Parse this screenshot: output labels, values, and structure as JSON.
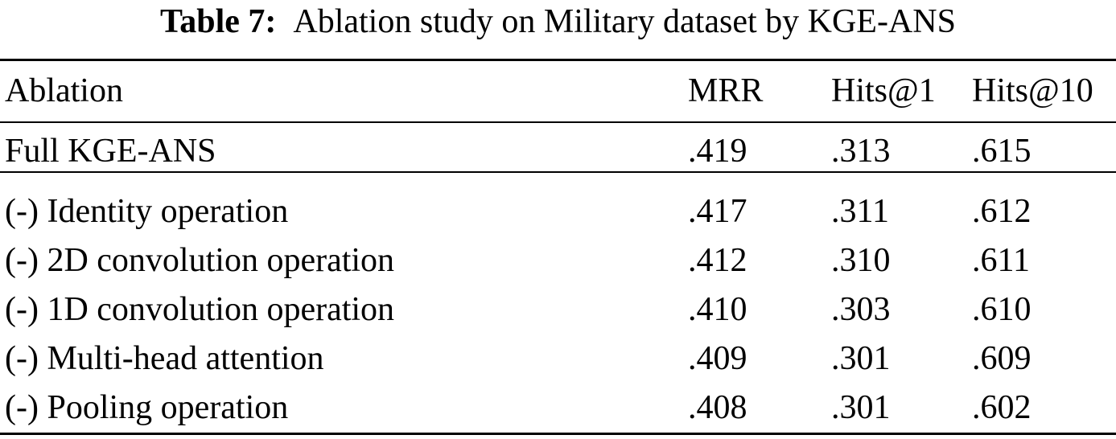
{
  "caption": {
    "label": "Table 7:",
    "text": "Ablation study on Military dataset by KGE-ANS"
  },
  "table": {
    "headers": [
      "Ablation",
      "MRR",
      "Hits@1",
      "Hits@10"
    ],
    "rows": [
      {
        "ablation": "Full KGE-ANS",
        "mrr": ".419",
        "hits1": ".313",
        "hits10": ".615"
      },
      {
        "ablation": "(-) Identity operation",
        "mrr": ".417",
        "hits1": ".311",
        "hits10": ".612"
      },
      {
        "ablation": "(-) 2D convolution operation",
        "mrr": ".412",
        "hits1": ".310",
        "hits10": ".611"
      },
      {
        "ablation": "(-) 1D convolution operation",
        "mrr": ".410",
        "hits1": ".303",
        "hits10": ".610"
      },
      {
        "ablation": "(-) Multi-head attention",
        "mrr": ".409",
        "hits1": ".301",
        "hits10": ".609"
      },
      {
        "ablation": "(-) Pooling operation",
        "mrr": ".408",
        "hits1": ".301",
        "hits10": ".602"
      }
    ]
  }
}
